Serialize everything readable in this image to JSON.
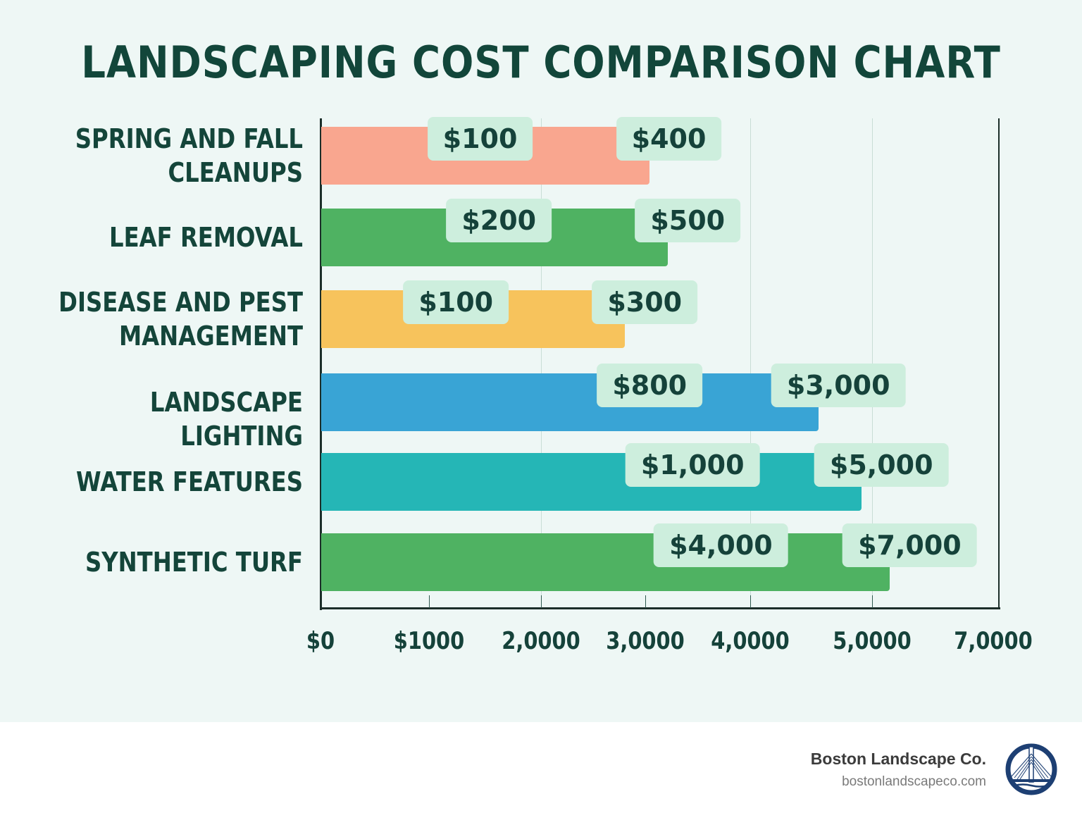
{
  "chart_data": {
    "type": "bar",
    "orientation": "horizontal",
    "title": "LANDSCAPING COST COMPARISON CHART",
    "categories": [
      "SPRING AND FALL CLEANUPS",
      "LEAF REMOVAL",
      "DISEASE AND PEST MANAGEMENT",
      "LANDSCAPE LIGHTING",
      "WATER FEATURES",
      "SYNTHETIC TURF"
    ],
    "series": [
      {
        "values_low": [
          100,
          200,
          100,
          800,
          1000,
          4000
        ],
        "values_high": [
          400,
          500,
          300,
          3000,
          5000,
          7000
        ]
      }
    ],
    "data_labels_low": [
      "$100",
      "$200",
      "$100",
      "$800",
      "$1,000",
      "$4,000"
    ],
    "data_labels_high": [
      "$400",
      "$500",
      "$300",
      "$3,000",
      "$5,000",
      "$7,000"
    ],
    "bar_colors": [
      "#f9a68f",
      "#4fb262",
      "#f7c35c",
      "#39a4d5",
      "#25b6b6",
      "#4fb262"
    ],
    "x_tick_labels": [
      "$0",
      "$1000",
      "2,0000",
      "3,0000",
      "4,0000",
      "5,0000",
      "7,0000"
    ],
    "xlabel": "",
    "ylabel": "",
    "grid": true,
    "legend": "none"
  },
  "footer": {
    "company": "Boston Landscape Co.",
    "url": "bostonlandscapeco.com",
    "logo_icon": "bridge-emblem-icon",
    "logo_color": "#1d3f73"
  }
}
